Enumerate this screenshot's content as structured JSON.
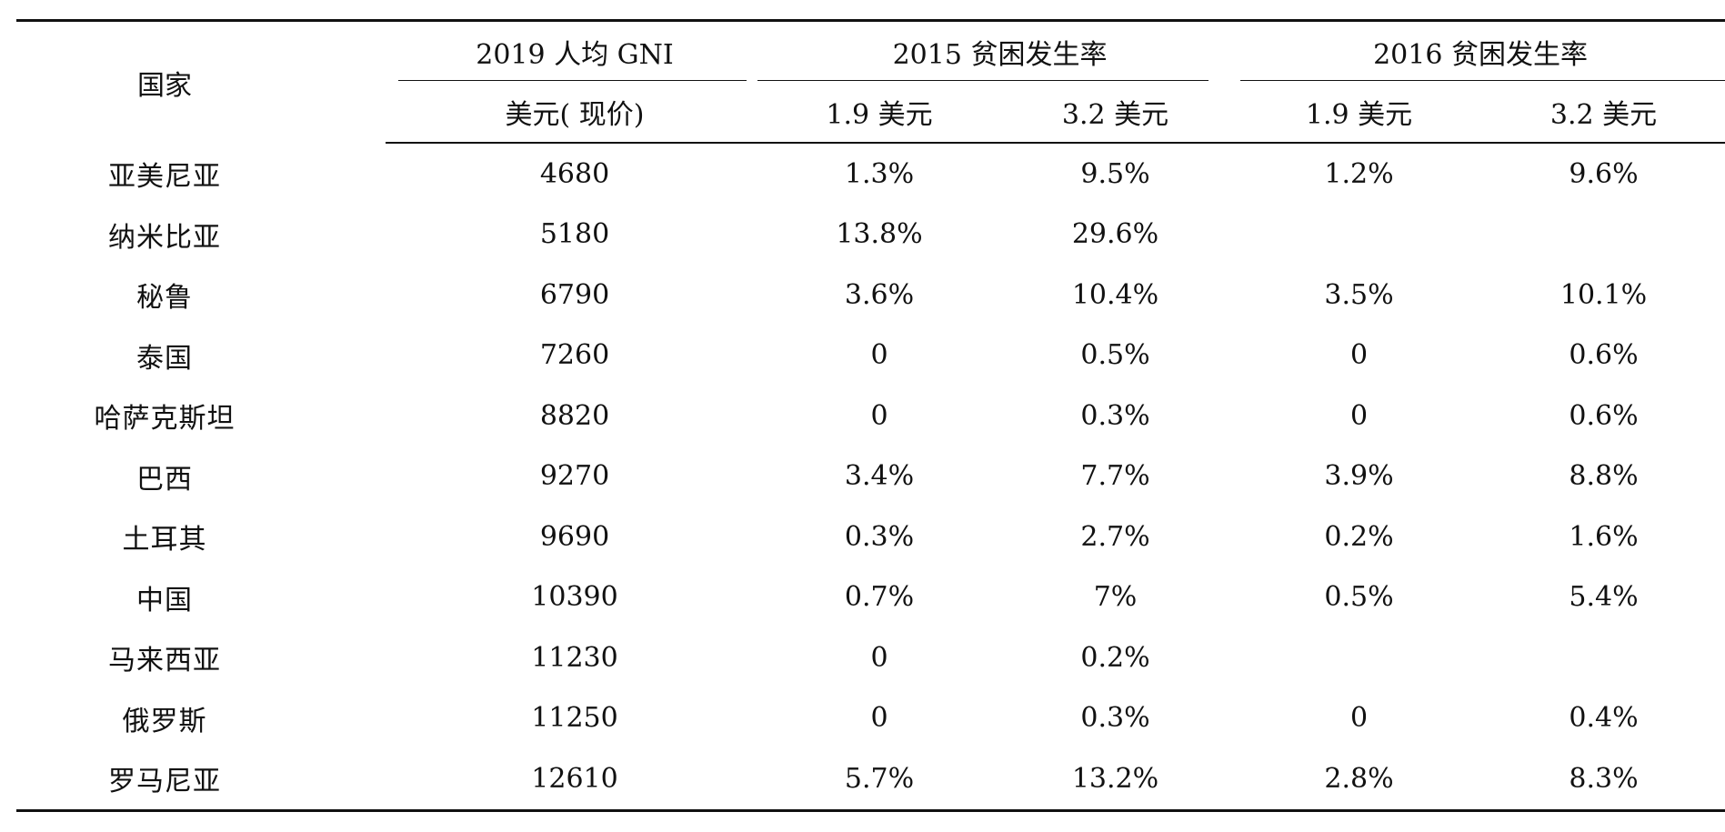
{
  "header": {
    "country": "国家",
    "gni_group": "2019 人均 GNI",
    "gni_unit": "美元( 现价)",
    "group_2015": "2015 贫困发生率",
    "group_2016": "2016 贫困发生率",
    "sub_19": "1.9 美元",
    "sub_32": "3.2 美元"
  },
  "rows": [
    {
      "country": "亚美尼亚",
      "gni": "4680",
      "p2015_19": "1.3%",
      "p2015_32": "9.5%",
      "p2016_19": "1.2%",
      "p2016_32": "9.6%"
    },
    {
      "country": "纳米比亚",
      "gni": "5180",
      "p2015_19": "13.8%",
      "p2015_32": "29.6%",
      "p2016_19": "",
      "p2016_32": ""
    },
    {
      "country": "秘鲁",
      "gni": "6790",
      "p2015_19": "3.6%",
      "p2015_32": "10.4%",
      "p2016_19": "3.5%",
      "p2016_32": "10.1%"
    },
    {
      "country": "泰国",
      "gni": "7260",
      "p2015_19": "0",
      "p2015_32": "0.5%",
      "p2016_19": "0",
      "p2016_32": "0.6%"
    },
    {
      "country": "哈萨克斯坦",
      "gni": "8820",
      "p2015_19": "0",
      "p2015_32": "0.3%",
      "p2016_19": "0",
      "p2016_32": "0.6%"
    },
    {
      "country": "巴西",
      "gni": "9270",
      "p2015_19": "3.4%",
      "p2015_32": "7.7%",
      "p2016_19": "3.9%",
      "p2016_32": "8.8%"
    },
    {
      "country": "土耳其",
      "gni": "9690",
      "p2015_19": "0.3%",
      "p2015_32": "2.7%",
      "p2016_19": "0.2%",
      "p2016_32": "1.6%"
    },
    {
      "country": "中国",
      "gni": "10390",
      "p2015_19": "0.7%",
      "p2015_32": "7%",
      "p2016_19": "0.5%",
      "p2016_32": "5.4%"
    },
    {
      "country": "马来西亚",
      "gni": "11230",
      "p2015_19": "0",
      "p2015_32": "0.2%",
      "p2016_19": "",
      "p2016_32": ""
    },
    {
      "country": "俄罗斯",
      "gni": "11250",
      "p2015_19": "0",
      "p2015_32": "0.3%",
      "p2016_19": "0",
      "p2016_32": "0.4%"
    },
    {
      "country": "罗马尼亚",
      "gni": "12610",
      "p2015_19": "5.7%",
      "p2015_32": "13.2%",
      "p2016_19": "2.8%",
      "p2016_32": "8.3%"
    }
  ]
}
